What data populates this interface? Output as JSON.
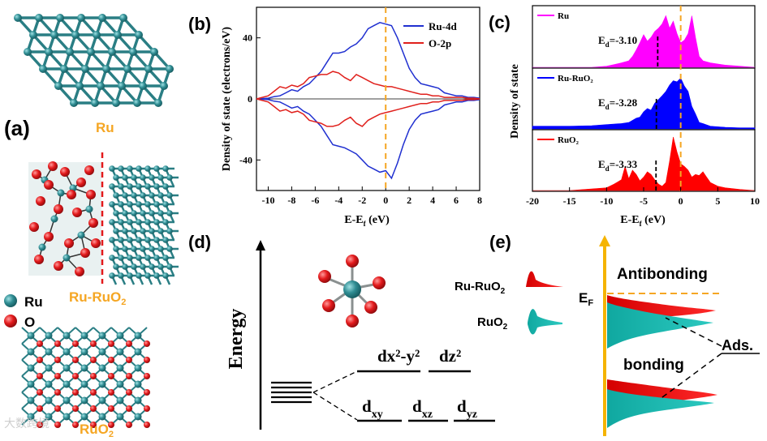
{
  "panels": {
    "a": {
      "label": "(a)",
      "structures": [
        "Ru",
        "Ru-RuO",
        "RuO"
      ],
      "structure_subscripts": [
        "",
        "2",
        "2"
      ],
      "legend": [
        "Ru",
        "O"
      ],
      "colors": {
        "ru": "#2f8c92",
        "o": "#e31a1c",
        "label": "#f5a623"
      }
    },
    "b": {
      "label": "(b)",
      "ylabel": "Density of state (electrons/eV)",
      "xlabel": "E-E",
      "xlabel_sub": "f",
      "xlabel_unit": " (eV)"
    },
    "c": {
      "label": "(c)",
      "ylabel": "Density of state",
      "xlabel": "E-E",
      "xlabel_sub": "f",
      "xlabel_unit": " (eV)"
    },
    "d": {
      "label": "(d)",
      "axis_label": "Energy",
      "eg_labels": [
        "dx²-y²",
        "dz²"
      ],
      "t2g_labels": [
        "d",
        "d",
        "d"
      ],
      "t2g_subs": [
        "xy",
        "xz",
        "yz"
      ]
    },
    "e": {
      "label": "(e)",
      "species": [
        "Ru-RuO",
        "RuO"
      ],
      "species_sub": [
        "2",
        "2"
      ],
      "fermi": "E",
      "fermi_sub": "F",
      "antibonding": "Antibonding",
      "bonding": "bonding",
      "ads": "Ads."
    }
  },
  "chart_data": [
    {
      "type": "line",
      "panel": "b",
      "xlim": [
        -11,
        8
      ],
      "ylim": [
        -60,
        60
      ],
      "xticks": [
        -10,
        -8,
        -6,
        -4,
        -2,
        0,
        2,
        4,
        6,
        8
      ],
      "yticks": [
        -40,
        0,
        40
      ],
      "fermi_level": 0,
      "series": [
        {
          "name": "Ru-4d",
          "color": "#2030d0",
          "x": [
            -11,
            -10,
            -9.5,
            -9,
            -8.5,
            -8,
            -7.5,
            -7,
            -6.5,
            -6,
            -5.5,
            -5,
            -4.5,
            -4,
            -3.5,
            -3,
            -2.5,
            -2,
            -1.5,
            -1,
            -0.5,
            0,
            0.5,
            1,
            1.5,
            2,
            2.5,
            3,
            3.5,
            4,
            4.5,
            5,
            5.5,
            6,
            6.5,
            7,
            7.5,
            8
          ],
          "up": [
            0,
            0.5,
            1.5,
            2,
            4,
            6,
            5,
            8,
            10,
            14,
            18,
            24,
            30,
            30,
            31,
            34,
            36,
            40,
            46,
            48,
            50,
            49,
            48,
            40,
            30,
            20,
            14,
            10,
            9,
            8,
            7,
            4,
            3,
            2,
            2,
            1,
            1,
            0.5
          ],
          "down": [
            0,
            -0.5,
            -1.5,
            -2,
            -4,
            -6,
            -5,
            -8,
            -10,
            -14,
            -18,
            -24,
            -30,
            -31,
            -32,
            -34,
            -36,
            -40,
            -44,
            -46,
            -48,
            -47,
            -52,
            -42,
            -30,
            -20,
            -14,
            -10,
            -9,
            -8,
            -7,
            -4,
            -3,
            -2,
            -2,
            -1,
            -1,
            -0.5
          ]
        },
        {
          "name": "O-2p",
          "color": "#e0201c",
          "x": [
            -11,
            -10,
            -9.5,
            -9,
            -8.5,
            -8,
            -7.5,
            -7,
            -6.5,
            -6,
            -5.5,
            -5,
            -4.5,
            -4,
            -3.5,
            -3,
            -2.5,
            -2,
            -1.5,
            -1,
            -0.5,
            0,
            0.5,
            1,
            1.5,
            2,
            2.5,
            3,
            3.5,
            4,
            4.5,
            5,
            5.5,
            6,
            6.5,
            7,
            7.5,
            8
          ],
          "up": [
            0,
            2,
            5,
            8,
            7,
            9,
            8,
            10,
            14,
            15,
            16,
            16,
            18,
            17,
            14,
            12,
            16,
            14,
            12,
            10,
            9,
            8,
            8,
            7,
            6,
            5,
            4,
            3,
            3,
            2,
            2,
            1,
            1,
            1,
            1,
            0.5,
            0.5,
            0
          ],
          "down": [
            0,
            -2,
            -5,
            -8,
            -7,
            -9,
            -8,
            -10,
            -14,
            -15,
            -16,
            -18,
            -18,
            -17,
            -14,
            -12,
            -16,
            -18,
            -14,
            -12,
            -10,
            -9,
            -8,
            -7,
            -6,
            -5,
            -4,
            -3,
            -3,
            -2,
            -2,
            -1,
            -1,
            -1,
            -1,
            -0.5,
            -0.5,
            0
          ]
        }
      ]
    },
    {
      "type": "area",
      "panel": "c",
      "xlim": [
        -20,
        10
      ],
      "xticks": [
        -20,
        -15,
        -10,
        -5,
        0,
        5,
        10
      ],
      "fermi_level": 0,
      "series": [
        {
          "name": "Ru",
          "color": "#ff00ff",
          "ed_value": -3.1,
          "ed_label": "E",
          "ed_sub": "d",
          "ed_text": "=-3.10",
          "x": [
            -20,
            -12,
            -10,
            -9,
            -8,
            -7,
            -6.5,
            -6,
            -5.5,
            -5,
            -4.5,
            -4,
            -3.5,
            -3,
            -2.5,
            -2,
            -1.5,
            -1,
            -0.5,
            0,
            0.5,
            1,
            1.5,
            2,
            2.5,
            3,
            4,
            6,
            8,
            10
          ],
          "y": [
            0,
            0,
            0.02,
            0.05,
            0.08,
            0.12,
            0.2,
            0.32,
            0.45,
            0.6,
            0.48,
            0.55,
            0.66,
            0.72,
            0.8,
            0.95,
            0.72,
            0.85,
            0.62,
            0.45,
            0.5,
            0.62,
            0.95,
            0.55,
            0.2,
            0.12,
            0.08,
            0.04,
            0.02,
            0
          ]
        },
        {
          "name": "Ru-RuO₂",
          "color": "#0000ff",
          "ed_value": -3.28,
          "ed_label": "E",
          "ed_sub": "d",
          "ed_text": "=-3.28",
          "x": [
            -20,
            -15,
            -12,
            -10,
            -8,
            -7,
            -6,
            -5.5,
            -5,
            -4.5,
            -4,
            -3.5,
            -3,
            -2.5,
            -2,
            -1.5,
            -1,
            -0.5,
            0,
            0.5,
            1,
            1.5,
            2,
            2.5,
            3,
            4,
            6,
            8,
            10
          ],
          "y": [
            0.05,
            0.05,
            0.06,
            0.08,
            0.1,
            0.12,
            0.2,
            0.22,
            0.32,
            0.38,
            0.35,
            0.48,
            0.55,
            0.62,
            0.7,
            0.82,
            0.9,
            0.88,
            0.95,
            0.8,
            0.7,
            0.42,
            0.28,
            0.12,
            0.1,
            0.05,
            0.03,
            0.02,
            0.02
          ]
        },
        {
          "name": "RuO₂",
          "color": "#ff0000",
          "ed_value": -3.33,
          "ed_label": "E",
          "ed_sub": "d",
          "ed_text": "=-3.33",
          "x": [
            -20,
            -15,
            -10,
            -9,
            -8,
            -7.5,
            -7,
            -6.5,
            -6,
            -5.5,
            -5,
            -4.5,
            -4,
            -3.5,
            -3,
            -2.5,
            -2,
            -1.5,
            -1,
            -0.5,
            0,
            0.5,
            1,
            1.5,
            2,
            2.5,
            3,
            3.5,
            4,
            5,
            6,
            8,
            10
          ],
          "y": [
            0,
            0,
            0.05,
            0.12,
            0.2,
            0.45,
            0.22,
            0.38,
            0.3,
            0.18,
            0.25,
            0.35,
            0.3,
            0.2,
            0.12,
            0.08,
            0.15,
            0.55,
            1.0,
            0.72,
            0.5,
            0.45,
            0.38,
            0.25,
            0.3,
            0.28,
            0.35,
            0.25,
            0.15,
            0.08,
            0.05,
            0.02,
            0
          ]
        }
      ]
    }
  ],
  "watermark": "大数跨境"
}
